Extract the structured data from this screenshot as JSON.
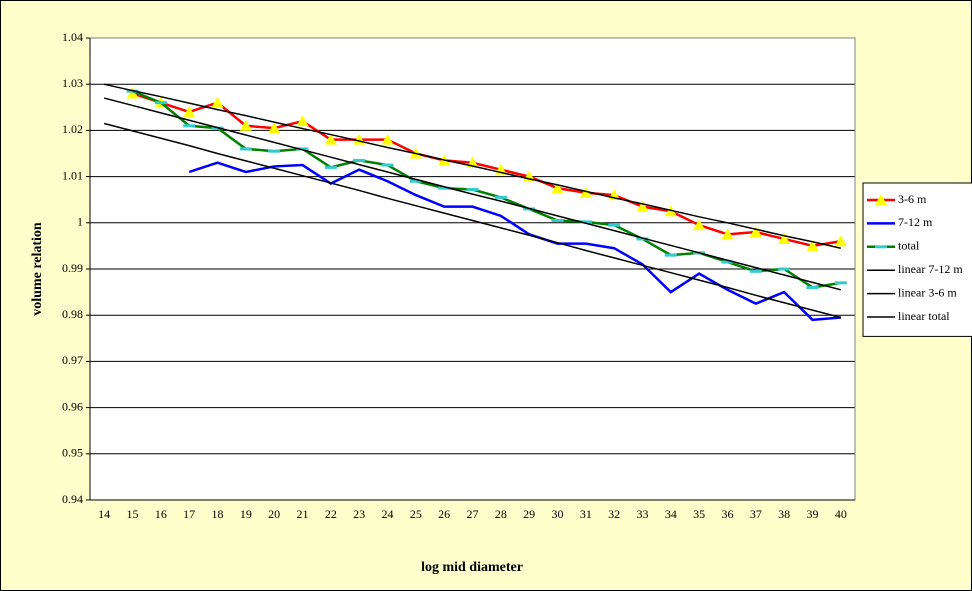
{
  "chart_data": {
    "type": "line",
    "x_label": "log mid diameter",
    "y_label": "volume relation",
    "categories": [
      14,
      15,
      16,
      17,
      18,
      19,
      20,
      21,
      22,
      23,
      24,
      25,
      26,
      27,
      28,
      29,
      30,
      31,
      32,
      33,
      34,
      35,
      36,
      37,
      38,
      39,
      40
    ],
    "ylim": [
      0.94,
      1.04
    ],
    "yticks": [
      0.94,
      0.95,
      0.96,
      0.97,
      0.98,
      0.99,
      1,
      1.01,
      1.02,
      1.03,
      1.04
    ],
    "grid": true,
    "legend": "right",
    "series": [
      {
        "name": "3-6 m",
        "color": "#ff0000",
        "marker": "triangle",
        "marker_color": "#ffff00",
        "values": [
          null,
          1.028,
          1.026,
          1.024,
          1.026,
          1.021,
          1.0205,
          1.022,
          1.018,
          1.018,
          1.018,
          1.015,
          1.0135,
          1.013,
          1.0115,
          1.01,
          1.0075,
          1.0065,
          1.006,
          1.0035,
          1.0025,
          0.9995,
          0.9975,
          0.998,
          0.9965,
          0.995,
          0.996
        ]
      },
      {
        "name": "7-12 m",
        "color": "#0000ff",
        "values": [
          null,
          null,
          null,
          1.011,
          1.013,
          1.011,
          1.0122,
          1.0125,
          1.0085,
          1.0115,
          1.009,
          1.006,
          1.0035,
          1.0035,
          1.0015,
          0.9975,
          0.9955,
          0.9955,
          0.9945,
          0.991,
          0.985,
          0.989,
          0.9855,
          0.9825,
          0.985,
          0.979,
          0.9795
        ]
      },
      {
        "name": "total",
        "color": "#008000",
        "marker": "dash",
        "marker_color": "#33cccc",
        "values": [
          null,
          1.0285,
          1.026,
          1.021,
          1.0205,
          1.016,
          1.0155,
          1.016,
          1.012,
          1.0135,
          1.0125,
          1.009,
          1.0075,
          1.0072,
          1.0055,
          1.003,
          1.0005,
          1.0002,
          0.9995,
          0.9965,
          0.993,
          0.9935,
          0.9915,
          0.9895,
          0.99,
          0.986,
          0.987
        ]
      },
      {
        "name": "linear 7-12 m",
        "color": "#000000",
        "values": [
          1.0215,
          1.0199,
          1.0183,
          1.0167,
          1.015,
          1.0134,
          1.0118,
          1.0102,
          1.0086,
          1.007,
          1.0053,
          1.0037,
          1.0021,
          1.0005,
          0.9989,
          0.9973,
          0.9957,
          0.994,
          0.9924,
          0.9908,
          0.9892,
          0.9876,
          0.986,
          0.9843,
          0.9827,
          0.9811,
          0.9795
        ]
      },
      {
        "name": "linear 3-6 m",
        "color": "#000000",
        "values": [
          1.03,
          1.0286,
          1.0273,
          1.0259,
          1.0245,
          1.0232,
          1.0218,
          1.0204,
          1.0191,
          1.0177,
          1.0163,
          1.015,
          1.0136,
          1.0123,
          1.0109,
          1.0095,
          1.0082,
          1.0068,
          1.0054,
          1.0041,
          1.0027,
          1.0013,
          1.0,
          0.9986,
          0.9972,
          0.9959,
          0.9945
        ]
      },
      {
        "name": "linear total",
        "color": "#000000",
        "values": [
          1.027,
          1.0254,
          1.0238,
          1.0222,
          1.0206,
          1.019,
          1.0174,
          1.0158,
          1.0142,
          1.0126,
          1.011,
          1.0094,
          1.0078,
          1.0062,
          1.0047,
          1.0031,
          1.0015,
          0.9999,
          0.9983,
          0.9967,
          0.9951,
          0.9935,
          0.9919,
          0.9903,
          0.9887,
          0.9871,
          0.9855
        ]
      }
    ]
  }
}
